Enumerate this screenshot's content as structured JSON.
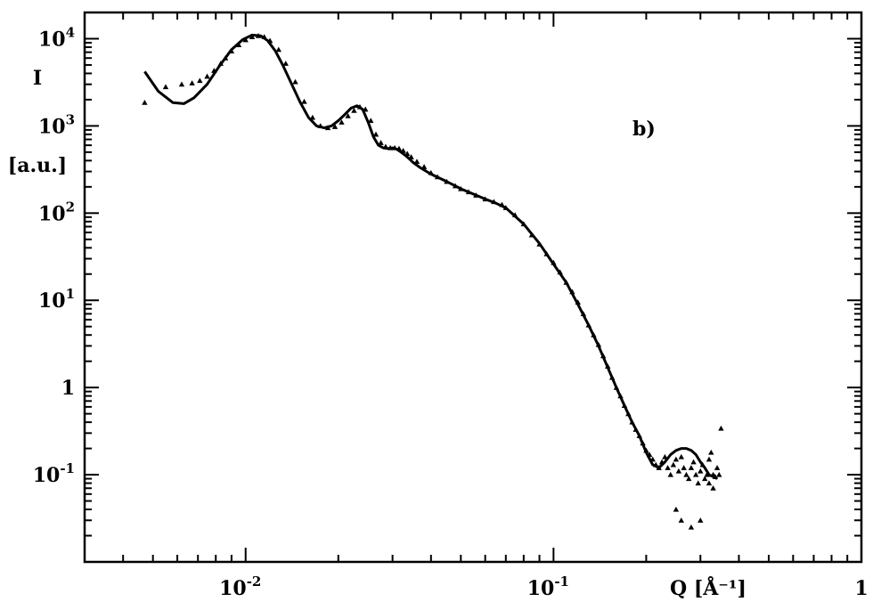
{
  "chart_data": {
    "type": "scatter",
    "title": "",
    "annotation": "b)",
    "xlabel": "Q [Å⁻¹]",
    "ylabel_lines": [
      "I",
      "[a.u.]"
    ],
    "x_scale": "log",
    "y_scale": "log",
    "xlim": [
      0.003,
      1
    ],
    "ylim": [
      0.01,
      20000
    ],
    "grid": false,
    "x_tick_labels": [
      {
        "value": 0.01,
        "base": "10",
        "exp": "-2"
      },
      {
        "value": 0.1,
        "base": "10",
        "exp": "-1"
      },
      {
        "value": 1,
        "base": "1",
        "exp": ""
      }
    ],
    "y_tick_labels": [
      {
        "value": 10000,
        "base": "10",
        "exp": "4"
      },
      {
        "value": 1000,
        "base": "10",
        "exp": "3"
      },
      {
        "value": 100,
        "base": "10",
        "exp": "2"
      },
      {
        "value": 10,
        "base": "10",
        "exp": "1"
      },
      {
        "value": 1,
        "base": "1",
        "exp": ""
      },
      {
        "value": 0.1,
        "base": "10",
        "exp": "-1"
      }
    ],
    "series": [
      {
        "kind": "line",
        "x": [
          0.0047,
          0.0052,
          0.0058,
          0.0063,
          0.0068,
          0.0075,
          0.0082,
          0.009,
          0.0098,
          0.0105,
          0.0112,
          0.0118,
          0.0125,
          0.0132,
          0.014,
          0.015,
          0.016,
          0.017,
          0.018,
          0.019,
          0.02,
          0.021,
          0.022,
          0.023,
          0.024,
          0.025,
          0.026,
          0.027,
          0.028,
          0.029,
          0.03,
          0.031,
          0.032,
          0.033,
          0.034,
          0.035,
          0.037,
          0.04,
          0.045,
          0.05,
          0.055,
          0.06,
          0.065,
          0.07,
          0.08,
          0.09,
          0.1,
          0.11,
          0.12,
          0.13,
          0.14,
          0.15,
          0.16,
          0.17,
          0.18,
          0.19,
          0.2,
          0.21,
          0.22,
          0.23,
          0.24,
          0.25,
          0.26,
          0.27,
          0.28,
          0.29,
          0.3,
          0.31,
          0.32,
          0.33,
          0.34
        ],
        "y": [
          4200,
          2500,
          1850,
          1800,
          2100,
          3000,
          4800,
          7500,
          9800,
          11000,
          10800,
          9500,
          7200,
          5000,
          3200,
          1900,
          1250,
          1000,
          950,
          1000,
          1150,
          1350,
          1600,
          1700,
          1550,
          1100,
          750,
          600,
          560,
          550,
          560,
          540,
          500,
          460,
          420,
          380,
          330,
          280,
          230,
          190,
          165,
          145,
          130,
          115,
          75,
          45,
          26,
          16,
          9,
          5.2,
          3,
          1.7,
          1,
          0.62,
          0.4,
          0.28,
          0.18,
          0.13,
          0.12,
          0.14,
          0.17,
          0.19,
          0.2,
          0.2,
          0.19,
          0.17,
          0.14,
          0.12,
          0.1,
          0.095,
          0.09
        ]
      },
      {
        "kind": "points",
        "marker": "triangle",
        "x": [
          0.0047,
          0.0055,
          0.0062,
          0.0067,
          0.0071,
          0.0075,
          0.0079,
          0.0083,
          0.0086,
          0.009,
          0.0095,
          0.01,
          0.0105,
          0.011,
          0.0115,
          0.012,
          0.0128,
          0.0135,
          0.0145,
          0.0155,
          0.0165,
          0.0175,
          0.0185,
          0.0195,
          0.0205,
          0.0215,
          0.0225,
          0.0235,
          0.0245,
          0.0255,
          0.0265,
          0.0275,
          0.0285,
          0.0295,
          0.0305,
          0.0315,
          0.0325,
          0.0335,
          0.0345,
          0.036,
          0.038,
          0.04,
          0.042,
          0.045,
          0.048,
          0.05,
          0.053,
          0.056,
          0.06,
          0.064,
          0.068,
          0.07,
          0.075,
          0.08,
          0.085,
          0.09,
          0.095,
          0.1,
          0.105,
          0.11,
          0.115,
          0.12,
          0.125,
          0.13,
          0.135,
          0.14,
          0.145,
          0.15,
          0.155,
          0.16,
          0.165,
          0.17,
          0.175,
          0.18,
          0.185,
          0.19,
          0.195,
          0.2,
          0.205,
          0.21,
          0.215,
          0.22,
          0.225,
          0.23,
          0.235,
          0.24,
          0.245,
          0.25,
          0.255,
          0.26,
          0.265,
          0.27,
          0.275,
          0.28,
          0.285,
          0.29,
          0.295,
          0.3,
          0.305,
          0.31,
          0.315,
          0.32,
          0.325,
          0.33,
          0.335,
          0.34,
          0.345,
          0.35,
          0.25,
          0.26,
          0.28,
          0.3,
          0.32,
          0.33
        ],
        "y": [
          1850,
          2800,
          3000,
          3100,
          3300,
          3700,
          4300,
          5200,
          6000,
          7200,
          8500,
          9700,
          10500,
          10800,
          10500,
          9500,
          7500,
          5200,
          3200,
          1900,
          1250,
          1000,
          950,
          980,
          1100,
          1300,
          1500,
          1650,
          1550,
          1150,
          800,
          640,
          580,
          560,
          560,
          550,
          520,
          480,
          440,
          390,
          340,
          290,
          260,
          230,
          205,
          190,
          175,
          160,
          145,
          135,
          125,
          115,
          95,
          75,
          56,
          44,
          34,
          27,
          21,
          16,
          12.5,
          9.5,
          7,
          5.2,
          4,
          3.1,
          2.3,
          1.75,
          1.3,
          1,
          0.8,
          0.62,
          0.5,
          0.4,
          0.33,
          0.28,
          0.23,
          0.19,
          0.17,
          0.15,
          0.13,
          0.12,
          0.14,
          0.16,
          0.12,
          0.1,
          0.13,
          0.15,
          0.11,
          0.16,
          0.12,
          0.1,
          0.09,
          0.12,
          0.14,
          0.1,
          0.08,
          0.11,
          0.13,
          0.09,
          0.1,
          0.15,
          0.18,
          0.1,
          0.095,
          0.12,
          0.1,
          0.34,
          0.04,
          0.03,
          0.025,
          0.03,
          0.08,
          0.07
        ]
      }
    ]
  }
}
